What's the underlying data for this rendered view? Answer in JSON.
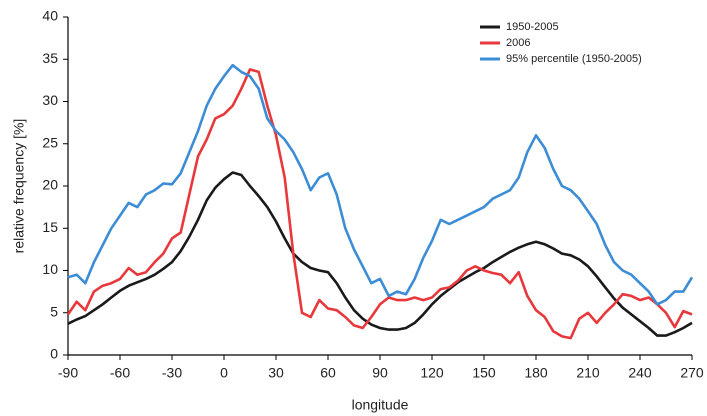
{
  "chart_data": {
    "type": "line",
    "x_label": "longitude",
    "y_label": "relative frequency [%]",
    "x": [
      -90,
      -85,
      -80,
      -75,
      -70,
      -65,
      -60,
      -55,
      -50,
      -45,
      -40,
      -35,
      -30,
      -25,
      -20,
      -15,
      -10,
      -5,
      0,
      5,
      10,
      15,
      20,
      25,
      30,
      35,
      40,
      45,
      50,
      55,
      60,
      65,
      70,
      75,
      80,
      85,
      90,
      95,
      100,
      105,
      110,
      115,
      120,
      125,
      130,
      135,
      140,
      145,
      150,
      155,
      160,
      165,
      170,
      175,
      180,
      185,
      190,
      195,
      200,
      205,
      210,
      215,
      220,
      225,
      230,
      235,
      240,
      245,
      250,
      255,
      260,
      265,
      270
    ],
    "series": [
      {
        "name": "1950-2005",
        "color": "#1a1a1a",
        "values": [
          3.7,
          4.2,
          4.6,
          5.3,
          6,
          6.8,
          7.6,
          8.2,
          8.6,
          9,
          9.5,
          10.2,
          11,
          12.3,
          14,
          16,
          18.3,
          19.8,
          20.8,
          21.6,
          21.3,
          20,
          18.8,
          17.5,
          15.8,
          13.8,
          12,
          11,
          10.3,
          10,
          9.8,
          8.5,
          6.8,
          5.3,
          4.3,
          3.6,
          3.2,
          3,
          3,
          3.2,
          3.8,
          4.8,
          6,
          7,
          7.8,
          8.6,
          9.2,
          9.8,
          10.3,
          11,
          11.6,
          12.2,
          12.7,
          13.1,
          13.4,
          13.1,
          12.6,
          12,
          11.8,
          11.3,
          10.5,
          9.3,
          8,
          6.7,
          5.6,
          4.8,
          4,
          3.2,
          2.3,
          2.3,
          2.7,
          3.2,
          3.8
        ]
      },
      {
        "name": "2006",
        "color": "#e8383b",
        "values": [
          4.8,
          6.3,
          5.3,
          7.5,
          8.2,
          8.5,
          9,
          10.3,
          9.5,
          9.8,
          11,
          12,
          13.8,
          14.5,
          19,
          23.5,
          25.5,
          28,
          28.5,
          29.5,
          31.5,
          33.8,
          33.5,
          29.5,
          26,
          21,
          12,
          5,
          4.5,
          6.5,
          5.5,
          5.3,
          4.5,
          3.5,
          3.2,
          4.5,
          6,
          6.8,
          6.5,
          6.5,
          6.8,
          6.5,
          6.8,
          7.8,
          8,
          8.8,
          10,
          10.5,
          10,
          9.7,
          9.5,
          8.5,
          9.8,
          7,
          5.3,
          4.5,
          2.8,
          2.2,
          2,
          4.3,
          5,
          3.8,
          5,
          6,
          7.2,
          7,
          6.5,
          6.8,
          6,
          5,
          3.3,
          5.2,
          4.8
        ]
      },
      {
        "name": "95% percentile (1950-2005)",
        "color": "#3c8dd6",
        "values": [
          9.2,
          9.5,
          8.5,
          11,
          13,
          15,
          16.5,
          18,
          17.5,
          19,
          19.5,
          20.3,
          20.2,
          21.5,
          24,
          26.5,
          29.5,
          31.5,
          33,
          34.3,
          33.5,
          33,
          31.5,
          28,
          26.5,
          25.5,
          24,
          22,
          19.5,
          21,
          21.5,
          19,
          15,
          12.5,
          10.5,
          8.5,
          9,
          7,
          7.5,
          7.2,
          9,
          11.5,
          13.5,
          16,
          15.5,
          16,
          16.5,
          17,
          17.5,
          18.5,
          19,
          19.5,
          21,
          24,
          26,
          24.5,
          22,
          20,
          19.5,
          18.5,
          17,
          15.5,
          13,
          11,
          10,
          9.5,
          8.5,
          7.5,
          6,
          6.5,
          7.5,
          7.5,
          9.2
        ]
      }
    ],
    "xlim": [
      -90,
      270
    ],
    "xticks": [
      -90,
      -60,
      -30,
      0,
      30,
      60,
      90,
      120,
      150,
      180,
      210,
      240,
      270
    ],
    "ylim": [
      0,
      40
    ],
    "yticks": [
      0,
      5,
      10,
      15,
      20,
      25,
      30,
      35,
      40
    ],
    "grid": false,
    "legend": "upper right"
  }
}
